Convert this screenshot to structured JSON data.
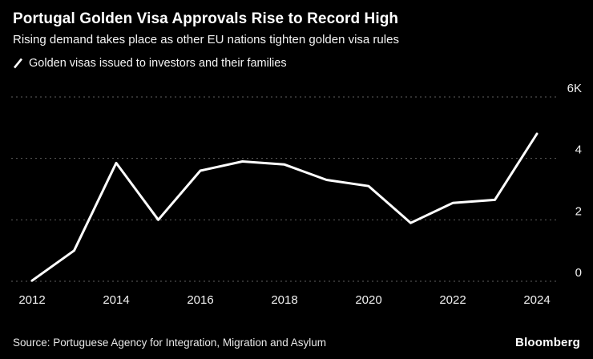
{
  "header": {
    "title": "Portugal Golden Visa Approvals Rise to Record High",
    "subtitle": "Rising demand takes place as other EU nations tighten golden visa rules"
  },
  "legend": {
    "label": "Golden visas issued to investors and their families"
  },
  "footer": {
    "source": "Source: Portuguese Agency for Integration, Migration and Asylum",
    "logo": "Bloomberg"
  },
  "colors": {
    "background": "#000000",
    "line": "#ffffff",
    "grid": "#5f5f5f",
    "axis_text": "#f2f2f2"
  },
  "chart_data": {
    "type": "line",
    "title": "Portugal Golden Visa Approvals Rise to Record High",
    "subtitle": "Rising demand takes place as other EU nations tighten golden visa rules",
    "legend_entries": [
      "Golden visas issued to investors and their families"
    ],
    "legend_position": "top-left",
    "x": [
      2012,
      2013,
      2014,
      2015,
      2016,
      2017,
      2018,
      2019,
      2020,
      2021,
      2022,
      2023,
      2024
    ],
    "values": [
      0.02,
      1.0,
      3.85,
      2.0,
      3.6,
      3.9,
      3.8,
      3.3,
      3.1,
      1.9,
      2.55,
      2.65,
      4.8
    ],
    "unit": "thousands of visas",
    "ylim": [
      0,
      6
    ],
    "yticks": [
      0,
      2,
      4,
      6
    ],
    "ytick_labels": [
      "0",
      "2",
      "4",
      "6K"
    ],
    "xticks": [
      2012,
      2014,
      2016,
      2018,
      2020,
      2022,
      2024
    ],
    "y_axis_position": "right",
    "grid": "horizontal-dotted",
    "xlabel": "",
    "ylabel": ""
  }
}
